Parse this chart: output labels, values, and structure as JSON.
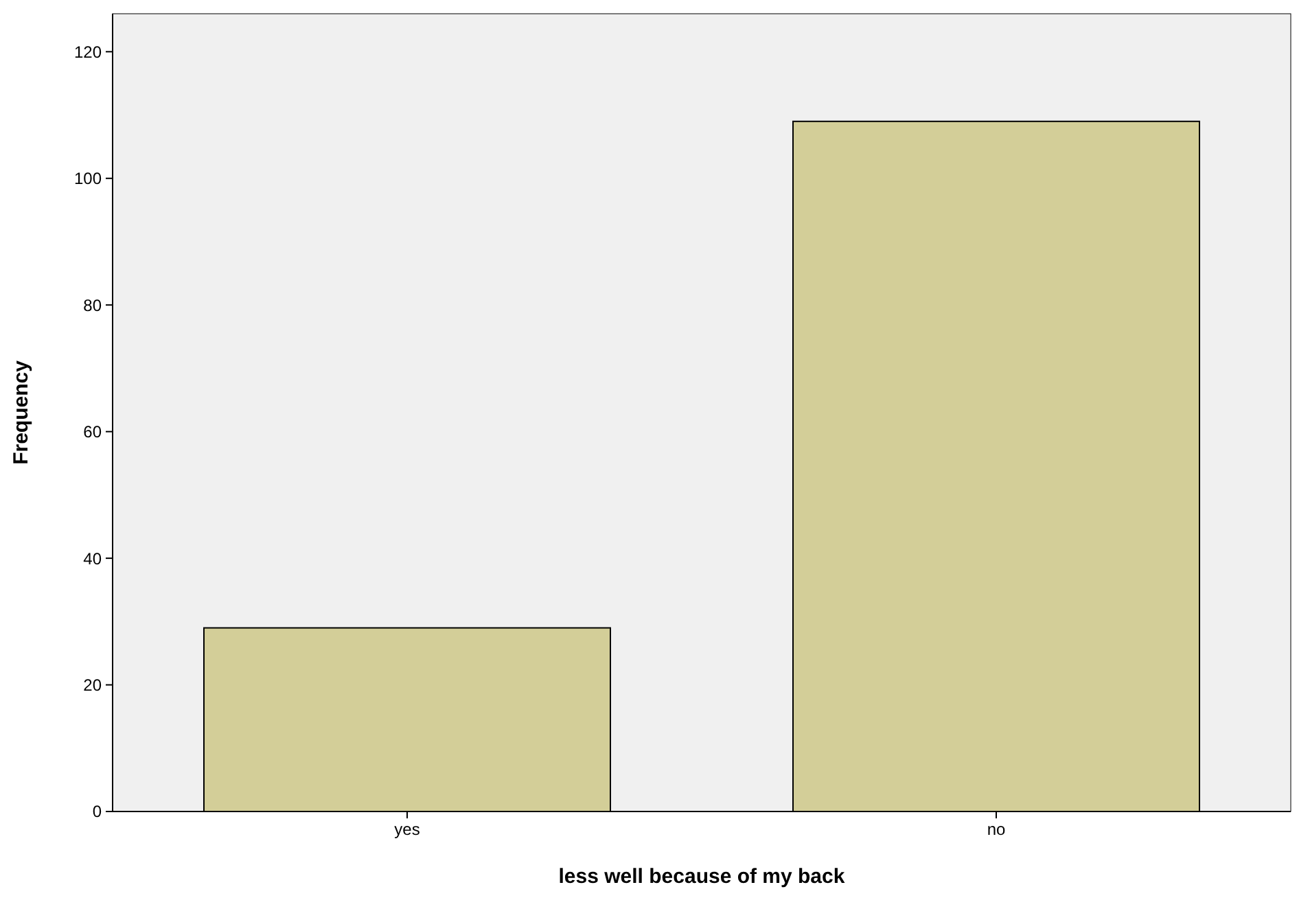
{
  "chart_data": {
    "type": "bar",
    "xlabel": "less well because of my back",
    "ylabel": "Frequency",
    "categories": [
      "yes",
      "no"
    ],
    "values": [
      29,
      109
    ],
    "color": "#d3ce98",
    "ylim": [
      0,
      126
    ],
    "yticks": [
      0,
      20,
      40,
      60,
      80,
      100,
      120
    ],
    "grid": false
  }
}
